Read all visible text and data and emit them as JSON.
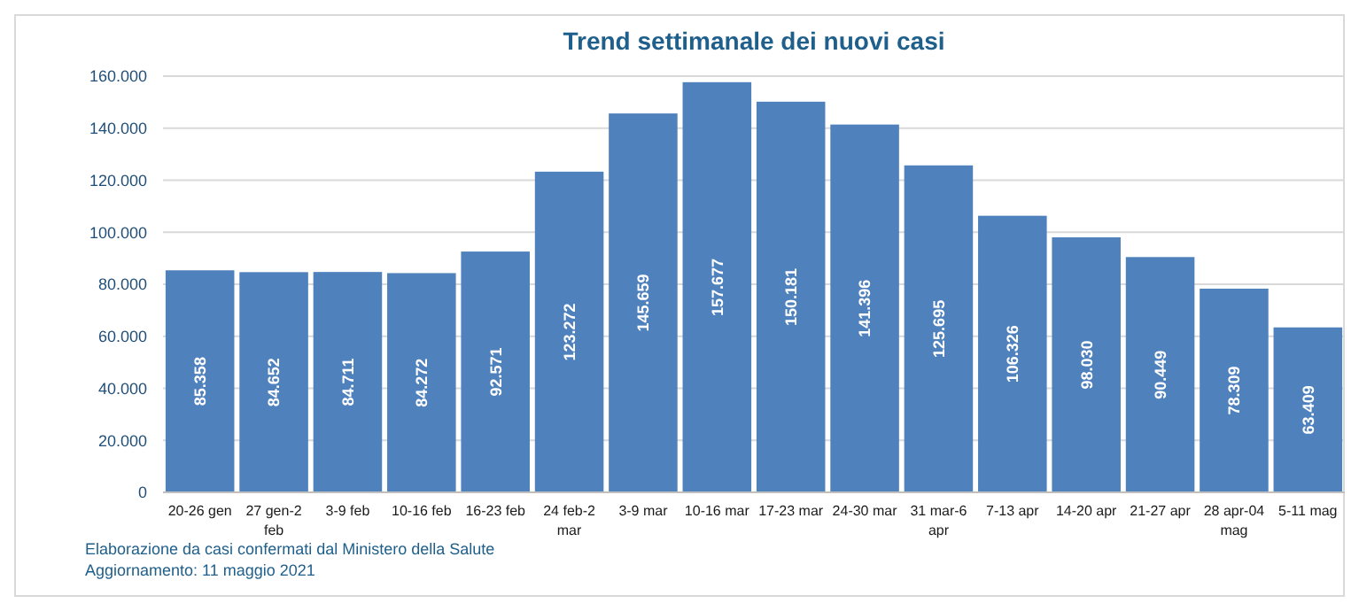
{
  "chart_data": {
    "type": "bar",
    "title": "Trend settimanale dei nuovi casi",
    "categories": [
      "20-26 gen",
      "27 gen-2 feb",
      "3-9 feb",
      "10-16 feb",
      "16-23 feb",
      "24 feb-2 mar",
      "3-9 mar",
      "10-16 mar",
      "17-23 mar",
      "24-30 mar",
      "31 mar-6 apr",
      "7-13 apr",
      "14-20 apr",
      "21-27 apr",
      "28 apr-04 mag",
      "5-11 mag"
    ],
    "values": [
      85358,
      84652,
      84711,
      84272,
      92571,
      123272,
      145659,
      157677,
      150181,
      141396,
      125695,
      106326,
      98030,
      90449,
      78309,
      63409
    ],
    "value_labels": [
      "85.358",
      "84.652",
      "84.711",
      "84.272",
      "92.571",
      "123.272",
      "145.659",
      "157.677",
      "150.181",
      "141.396",
      "125.695",
      "106.326",
      "98.030",
      "90.449",
      "78.309",
      "63.409"
    ],
    "color": "#4f81bd",
    "ylim": [
      0,
      160000
    ],
    "yticks": [
      0,
      {
        "value": 20000,
        "label": "20.000"
      },
      {
        "value": 40000,
        "label": "40.000"
      },
      {
        "value": 60000,
        "label": "60.000"
      },
      {
        "value": 80000,
        "label": "80.000"
      },
      {
        "value": 100000,
        "label": "100.000"
      },
      {
        "value": 120000,
        "label": "120.000"
      },
      {
        "value": 140000,
        "label": "140.000"
      },
      {
        "value": 160000,
        "label": "160.000"
      }
    ],
    "grid": "y",
    "annotations": [
      "Elaborazione da casi confermati dal Ministero della Salute",
      "Aggiornamento: 11 maggio 2021"
    ]
  }
}
